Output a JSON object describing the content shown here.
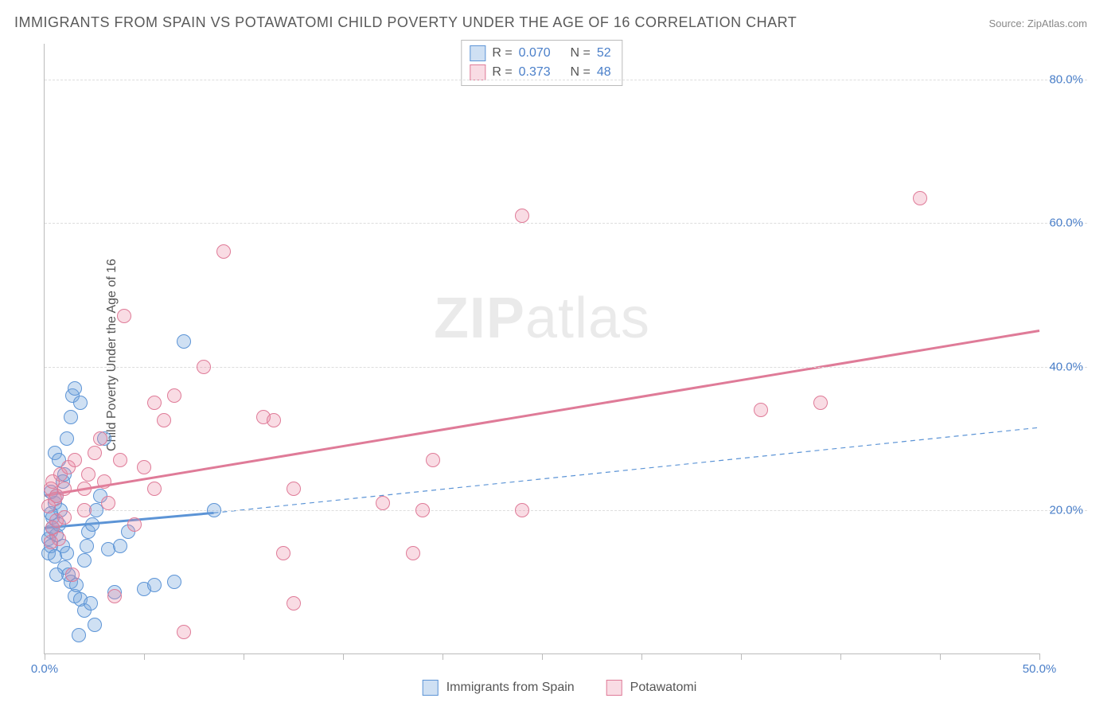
{
  "title": "IMMIGRANTS FROM SPAIN VS POTAWATOMI CHILD POVERTY UNDER THE AGE OF 16 CORRELATION CHART",
  "source_label": "Source: ZipAtlas.com",
  "ylabel": "Child Poverty Under the Age of 16",
  "watermark_bold": "ZIP",
  "watermark_light": "atlas",
  "chart": {
    "type": "scatter",
    "xlim": [
      0,
      50
    ],
    "ylim": [
      0,
      85
    ],
    "xticks": [
      0,
      5,
      10,
      15,
      20,
      25,
      30,
      35,
      40,
      45,
      50
    ],
    "xtick_labels_shown": {
      "0": "0.0%",
      "50": "50.0%"
    },
    "yticks": [
      20,
      40,
      60,
      80
    ],
    "ytick_format": ".0%",
    "grid_color": "#dddddd",
    "axis_color": "#bbbbbb",
    "tick_label_color": "#4a7fc9",
    "background_color": "#ffffff",
    "marker_radius": 9,
    "marker_stroke_width": 1.5,
    "series": [
      {
        "name": "Immigrants from Spain",
        "color_fill": "rgba(117,165,222,0.35)",
        "color_stroke": "#5c94d6",
        "r_value": "0.070",
        "n_value": "52",
        "regression": {
          "x1": 0,
          "y1": 17.5,
          "x2": 8.5,
          "y2": 19.6,
          "extrap_x2": 50,
          "extrap_y2": 31.5,
          "solid_width": 3,
          "dashed_width": 1.2,
          "dash": "6,5"
        },
        "points": [
          [
            0.2,
            16
          ],
          [
            0.3,
            17
          ],
          [
            0.4,
            19
          ],
          [
            0.5,
            21
          ],
          [
            0.6,
            22
          ],
          [
            0.3,
            22.5
          ],
          [
            0.8,
            20
          ],
          [
            0.2,
            14
          ],
          [
            0.3,
            15
          ],
          [
            0.5,
            13.5
          ],
          [
            0.6,
            16.5
          ],
          [
            0.7,
            18
          ],
          [
            0.9,
            15
          ],
          [
            1.0,
            12
          ],
          [
            1.1,
            14
          ],
          [
            1.2,
            11
          ],
          [
            1.3,
            10
          ],
          [
            1.5,
            8
          ],
          [
            1.6,
            9.5
          ],
          [
            1.8,
            7.5
          ],
          [
            2.0,
            13
          ],
          [
            2.1,
            15
          ],
          [
            2.2,
            17
          ],
          [
            2.4,
            18
          ],
          [
            2.6,
            20
          ],
          [
            2.0,
            6
          ],
          [
            2.3,
            7
          ],
          [
            1.0,
            25
          ],
          [
            1.1,
            30
          ],
          [
            1.3,
            33
          ],
          [
            1.4,
            36
          ],
          [
            1.5,
            37
          ],
          [
            1.8,
            35
          ],
          [
            0.5,
            28
          ],
          [
            0.7,
            27
          ],
          [
            0.9,
            24
          ],
          [
            0.3,
            19.5
          ],
          [
            0.4,
            17.5
          ],
          [
            3.2,
            14.5
          ],
          [
            3.5,
            8.5
          ],
          [
            3.8,
            15
          ],
          [
            4.2,
            17
          ],
          [
            5.0,
            9
          ],
          [
            5.5,
            9.5
          ],
          [
            2.8,
            22
          ],
          [
            3.0,
            30
          ],
          [
            6.5,
            10
          ],
          [
            7.0,
            43.5
          ],
          [
            8.5,
            20
          ],
          [
            2.5,
            4
          ],
          [
            1.7,
            2.5
          ],
          [
            0.6,
            11
          ]
        ]
      },
      {
        "name": "Potawatomi",
        "color_fill": "rgba(235,140,165,0.30)",
        "color_stroke": "#df7b98",
        "r_value": "0.373",
        "n_value": "48",
        "regression": {
          "x1": 0,
          "y1": 22,
          "x2": 50,
          "y2": 45,
          "solid_width": 3
        },
        "points": [
          [
            0.3,
            23
          ],
          [
            0.5,
            21.5
          ],
          [
            0.4,
            24
          ],
          [
            0.6,
            22
          ],
          [
            0.8,
            25
          ],
          [
            1.0,
            23
          ],
          [
            0.2,
            20.5
          ],
          [
            0.4,
            17.5
          ],
          [
            0.7,
            16
          ],
          [
            1.2,
            26
          ],
          [
            1.5,
            27
          ],
          [
            2.0,
            23
          ],
          [
            2.2,
            25
          ],
          [
            2.5,
            28
          ],
          [
            2.8,
            30
          ],
          [
            3.0,
            24
          ],
          [
            3.2,
            21
          ],
          [
            3.5,
            8
          ],
          [
            4.0,
            47
          ],
          [
            4.5,
            18
          ],
          [
            5.0,
            26
          ],
          [
            5.5,
            35
          ],
          [
            5.5,
            23
          ],
          [
            6.0,
            32.5
          ],
          [
            6.5,
            36
          ],
          [
            8.0,
            40
          ],
          [
            9.0,
            56
          ],
          [
            7.0,
            3
          ],
          [
            11.0,
            33
          ],
          [
            11.5,
            32.5
          ],
          [
            12.0,
            14
          ],
          [
            12.5,
            23
          ],
          [
            12.5,
            7
          ],
          [
            17.0,
            21
          ],
          [
            18.5,
            14
          ],
          [
            19.0,
            20
          ],
          [
            19.5,
            27
          ],
          [
            24.0,
            20
          ],
          [
            24.0,
            61
          ],
          [
            36.0,
            34
          ],
          [
            39.0,
            35
          ],
          [
            44.0,
            63.5
          ],
          [
            0.3,
            15.5
          ],
          [
            0.6,
            18.5
          ],
          [
            1.4,
            11
          ],
          [
            2.0,
            20
          ],
          [
            3.8,
            27
          ],
          [
            1.0,
            19
          ]
        ]
      }
    ]
  },
  "stats_labels": {
    "r_prefix": "R =",
    "n_prefix": "N ="
  },
  "bottom_legend": [
    {
      "label": "Immigrants from Spain"
    },
    {
      "label": "Potawatomi"
    }
  ]
}
